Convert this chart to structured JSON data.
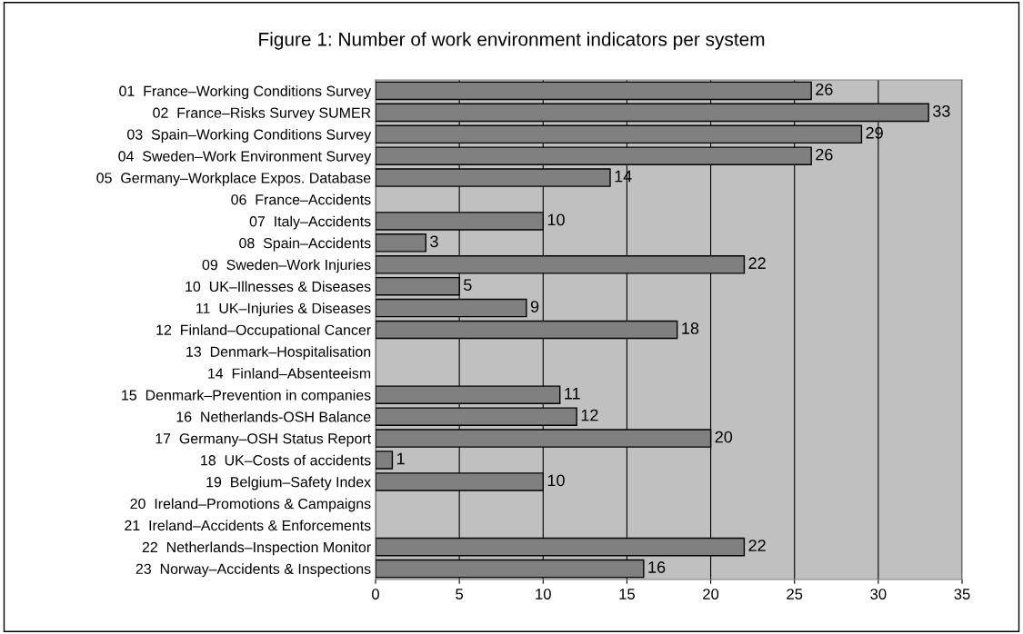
{
  "chart_data": {
    "type": "bar",
    "orientation": "horizontal",
    "title": "Figure 1: Number of work environment indicators per system",
    "categories": [
      "01  France–Working Conditions Survey",
      "02  France–Risks Survey SUMER",
      "03  Spain–Working Conditions Survey",
      "04  Sweden–Work Environment Survey",
      "05  Germany–Workplace Expos. Database",
      "06  France–Accidents",
      "07  Italy–Accidents",
      "08  Spain–Accidents",
      "09  Sweden–Work Injuries",
      "10  UK–Illnesses & Diseases",
      "11  UK–Injuries & Diseases",
      "12  Finland–Occupational Cancer",
      "13  Denmark–Hospitalisation",
      "14  Finland–Absenteeism",
      "15  Denmark–Prevention in companies",
      "16  Netherlands-OSH Balance",
      "17  Germany–OSH Status Report",
      "18  UK–Costs of accidents",
      "19  Belgium–Safety Index",
      "20  Ireland–Promotions & Campaigns",
      "21  Ireland–Accidents & Enforcements",
      "22  Netherlands–Inspection Monitor",
      "23  Norway–Accidents & Inspections"
    ],
    "values": [
      26,
      33,
      29,
      26,
      14,
      null,
      10,
      3,
      22,
      5,
      9,
      18,
      null,
      null,
      11,
      12,
      20,
      1,
      10,
      null,
      null,
      22,
      16
    ],
    "color": "#808080",
    "xlim": [
      0,
      35
    ],
    "xticks": [
      0,
      5,
      10,
      15,
      20,
      25,
      30,
      35
    ],
    "grid": "x",
    "data_labels": true,
    "legend": false
  }
}
